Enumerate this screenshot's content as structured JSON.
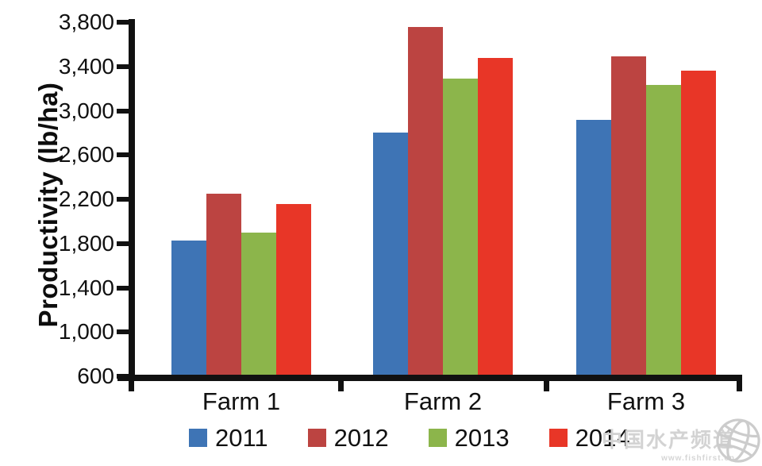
{
  "chart_data": {
    "type": "bar",
    "title": "",
    "xlabel": "",
    "ylabel": "Productivity (lb/ha)",
    "categories": [
      "Farm 1",
      "Farm 2",
      "Farm 3"
    ],
    "series": [
      {
        "name": "2011",
        "color": "#3E74B5",
        "values": [
          1830,
          2800,
          2920
        ]
      },
      {
        "name": "2012",
        "color": "#BC4441",
        "values": [
          2250,
          3760,
          3490
        ]
      },
      {
        "name": "2013",
        "color": "#8CB54B",
        "values": [
          1900,
          3290,
          3230
        ]
      },
      {
        "name": "2014",
        "color": "#E83627",
        "values": [
          2160,
          3480,
          3360
        ]
      }
    ],
    "ylim": [
      600,
      3800
    ],
    "ytick_step": 400,
    "ytick_labels": [
      "600",
      "1,000",
      "1,400",
      "1,800",
      "2,200",
      "2,600",
      "3,000",
      "3,400",
      "3,800"
    ],
    "grid": false,
    "legend_position": "bottom",
    "axis_color": "#111111"
  },
  "watermark": {
    "text": "中国水产频道",
    "url": "www.fishfirst.cn",
    "icon": "globe-icon",
    "color": "#d3d3d3"
  }
}
